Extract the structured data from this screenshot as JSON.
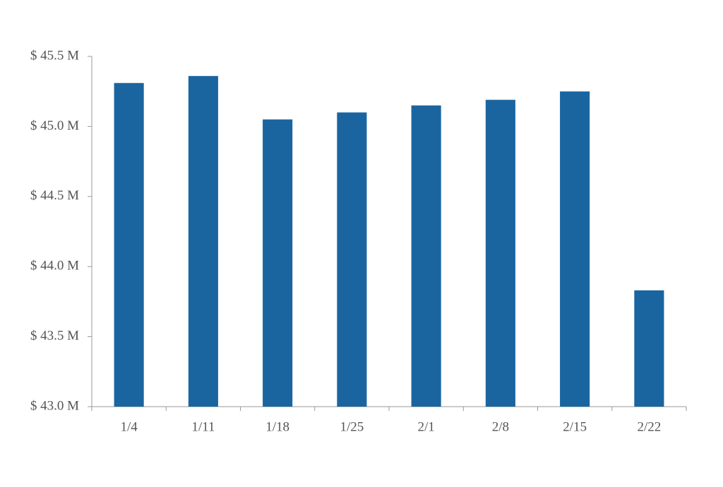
{
  "chart_data": {
    "type": "bar",
    "categories": [
      "1/4",
      "1/11",
      "1/18",
      "1/25",
      "2/1",
      "2/8",
      "2/15",
      "2/22"
    ],
    "values": [
      45.31,
      45.36,
      45.05,
      45.1,
      45.15,
      45.19,
      45.25,
      43.83
    ],
    "color": "#1a65a0",
    "ylim": [
      43.0,
      45.5
    ],
    "yticks": [
      {
        "value": 43.0,
        "label": "$ 43.0 M"
      },
      {
        "value": 43.5,
        "label": "$ 43.5 M"
      },
      {
        "value": 44.0,
        "label": "$ 44.0 M"
      },
      {
        "value": 44.5,
        "label": "$ 44.5 M"
      },
      {
        "value": 45.0,
        "label": "$ 45.0 M"
      },
      {
        "value": 45.5,
        "label": "$ 45.5 M"
      }
    ],
    "grid": false
  }
}
